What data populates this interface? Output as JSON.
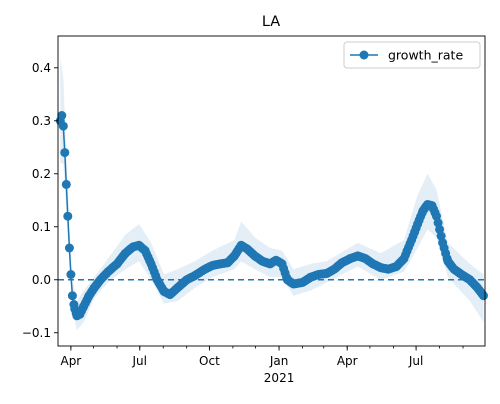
{
  "chart_data": {
    "type": "line",
    "title": "LA",
    "xlabel": "",
    "ylabel": "",
    "x_range": [
      "2020-03-15",
      "2021-09-30"
    ],
    "ylim": [
      -0.125,
      0.46
    ],
    "grid": false,
    "legend_position": "top-right",
    "x_ticks": [
      {
        "date": "2020-04-01",
        "label": "Apr"
      },
      {
        "date": "2020-07-01",
        "label": "Jul"
      },
      {
        "date": "2020-10-01",
        "label": "Oct"
      },
      {
        "date": "2021-01-01",
        "label": "Jan"
      },
      {
        "date": "2021-04-01",
        "label": "Apr"
      },
      {
        "date": "2021-07-01",
        "label": "Jul"
      }
    ],
    "x_year_label": "2021",
    "y_ticks": [
      -0.1,
      0.0,
      0.1,
      0.2,
      0.3,
      0.4
    ],
    "y_tick_labels": [
      "−0.1",
      "0.0",
      "0.1",
      "0.2",
      "0.3",
      "0.4"
    ],
    "reference_line": {
      "y": 0.0,
      "style": "dashed",
      "color": "#1f77b4"
    },
    "series": [
      {
        "name": "growth_rate",
        "color": "#1f77b4",
        "marker": "circle",
        "points": [
          [
            "2020-03-18",
            0.3
          ],
          [
            "2020-03-20",
            0.31
          ],
          [
            "2020-03-22",
            0.29
          ],
          [
            "2020-03-24",
            0.24
          ],
          [
            "2020-03-26",
            0.18
          ],
          [
            "2020-03-28",
            0.12
          ],
          [
            "2020-03-30",
            0.06
          ],
          [
            "2020-04-01",
            0.01
          ],
          [
            "2020-04-03",
            -0.03
          ],
          [
            "2020-04-06",
            -0.055
          ],
          [
            "2020-04-09",
            -0.068
          ],
          [
            "2020-04-13",
            -0.065
          ],
          [
            "2020-04-18",
            -0.05
          ],
          [
            "2020-04-25",
            -0.03
          ],
          [
            "2020-05-02",
            -0.015
          ],
          [
            "2020-05-10",
            0.0
          ],
          [
            "2020-05-20",
            0.015
          ],
          [
            "2020-06-01",
            0.03
          ],
          [
            "2020-06-12",
            0.05
          ],
          [
            "2020-06-22",
            0.062
          ],
          [
            "2020-06-30",
            0.065
          ],
          [
            "2020-07-08",
            0.055
          ],
          [
            "2020-07-16",
            0.03
          ],
          [
            "2020-07-24",
            0.0
          ],
          [
            "2020-08-02",
            -0.022
          ],
          [
            "2020-08-10",
            -0.028
          ],
          [
            "2020-08-20",
            -0.015
          ],
          [
            "2020-09-01",
            0.0
          ],
          [
            "2020-09-12",
            0.008
          ],
          [
            "2020-09-25",
            0.02
          ],
          [
            "2020-10-05",
            0.027
          ],
          [
            "2020-10-15",
            0.03
          ],
          [
            "2020-10-25",
            0.032
          ],
          [
            "2020-11-03",
            0.045
          ],
          [
            "2020-11-12",
            0.065
          ],
          [
            "2020-11-20",
            0.058
          ],
          [
            "2020-11-30",
            0.045
          ],
          [
            "2020-12-10",
            0.035
          ],
          [
            "2020-12-20",
            0.03
          ],
          [
            "2020-12-28",
            0.037
          ],
          [
            "2021-01-05",
            0.03
          ],
          [
            "2021-01-12",
            0.0
          ],
          [
            "2021-01-20",
            -0.008
          ],
          [
            "2021-02-01",
            -0.005
          ],
          [
            "2021-02-12",
            0.005
          ],
          [
            "2021-02-22",
            0.01
          ],
          [
            "2021-03-05",
            0.012
          ],
          [
            "2021-03-15",
            0.02
          ],
          [
            "2021-03-25",
            0.032
          ],
          [
            "2021-04-05",
            0.04
          ],
          [
            "2021-04-15",
            0.045
          ],
          [
            "2021-04-25",
            0.04
          ],
          [
            "2021-05-05",
            0.03
          ],
          [
            "2021-05-15",
            0.023
          ],
          [
            "2021-05-25",
            0.02
          ],
          [
            "2021-06-05",
            0.025
          ],
          [
            "2021-06-15",
            0.04
          ],
          [
            "2021-06-25",
            0.075
          ],
          [
            "2021-07-03",
            0.105
          ],
          [
            "2021-07-10",
            0.13
          ],
          [
            "2021-07-16",
            0.142
          ],
          [
            "2021-07-22",
            0.14
          ],
          [
            "2021-07-28",
            0.12
          ],
          [
            "2021-08-05",
            0.07
          ],
          [
            "2021-08-12",
            0.035
          ],
          [
            "2021-08-20",
            0.02
          ],
          [
            "2021-08-30",
            0.01
          ],
          [
            "2021-09-10",
            0.0
          ],
          [
            "2021-09-20",
            -0.015
          ],
          [
            "2021-09-28",
            -0.03
          ]
        ]
      }
    ],
    "band": {
      "color": "#1f77b4",
      "opacity": 0.12,
      "upper": [
        [
          "2020-03-18",
          0.42
        ],
        [
          "2020-03-22",
          0.38
        ],
        [
          "2020-03-26",
          0.24
        ],
        [
          "2020-03-30",
          0.1
        ],
        [
          "2020-04-03",
          0.0
        ],
        [
          "2020-04-09",
          -0.04
        ],
        [
          "2020-04-18",
          -0.02
        ],
        [
          "2020-05-02",
          0.005
        ],
        [
          "2020-05-20",
          0.04
        ],
        [
          "2020-06-12",
          0.085
        ],
        [
          "2020-06-30",
          0.105
        ],
        [
          "2020-07-16",
          0.07
        ],
        [
          "2020-08-02",
          0.01
        ],
        [
          "2020-08-20",
          0.02
        ],
        [
          "2020-09-12",
          0.035
        ],
        [
          "2020-10-05",
          0.055
        ],
        [
          "2020-11-03",
          0.075
        ],
        [
          "2020-11-12",
          0.11
        ],
        [
          "2020-11-30",
          0.08
        ],
        [
          "2020-12-20",
          0.06
        ],
        [
          "2021-01-05",
          0.055
        ],
        [
          "2021-01-20",
          0.02
        ],
        [
          "2021-02-12",
          0.03
        ],
        [
          "2021-03-05",
          0.035
        ],
        [
          "2021-04-15",
          0.07
        ],
        [
          "2021-05-15",
          0.05
        ],
        [
          "2021-06-15",
          0.075
        ],
        [
          "2021-07-03",
          0.16
        ],
        [
          "2021-07-16",
          0.2
        ],
        [
          "2021-07-28",
          0.17
        ],
        [
          "2021-08-12",
          0.07
        ],
        [
          "2021-09-10",
          0.03
        ],
        [
          "2021-09-28",
          0.01
        ]
      ],
      "lower": [
        [
          "2020-03-18",
          0.22
        ],
        [
          "2020-03-22",
          0.22
        ],
        [
          "2020-03-26",
          0.13
        ],
        [
          "2020-03-30",
          0.03
        ],
        [
          "2020-04-03",
          -0.06
        ],
        [
          "2020-04-09",
          -0.095
        ],
        [
          "2020-04-18",
          -0.08
        ],
        [
          "2020-05-02",
          -0.035
        ],
        [
          "2020-05-20",
          -0.005
        ],
        [
          "2020-06-12",
          0.02
        ],
        [
          "2020-06-30",
          0.035
        ],
        [
          "2020-07-16",
          0.0
        ],
        [
          "2020-08-02",
          -0.045
        ],
        [
          "2020-08-20",
          -0.04
        ],
        [
          "2020-09-12",
          -0.015
        ],
        [
          "2020-10-05",
          0.005
        ],
        [
          "2020-11-03",
          0.02
        ],
        [
          "2020-11-12",
          0.035
        ],
        [
          "2020-11-30",
          0.02
        ],
        [
          "2020-12-20",
          0.005
        ],
        [
          "2021-01-05",
          0.005
        ],
        [
          "2021-01-20",
          -0.03
        ],
        [
          "2021-02-12",
          -0.02
        ],
        [
          "2021-03-05",
          -0.005
        ],
        [
          "2021-04-15",
          0.025
        ],
        [
          "2021-05-15",
          0.0
        ],
        [
          "2021-06-15",
          0.015
        ],
        [
          "2021-07-03",
          0.06
        ],
        [
          "2021-07-16",
          0.095
        ],
        [
          "2021-07-28",
          0.08
        ],
        [
          "2021-08-12",
          0.005
        ],
        [
          "2021-09-10",
          -0.04
        ],
        [
          "2021-09-28",
          -0.08
        ]
      ]
    }
  }
}
